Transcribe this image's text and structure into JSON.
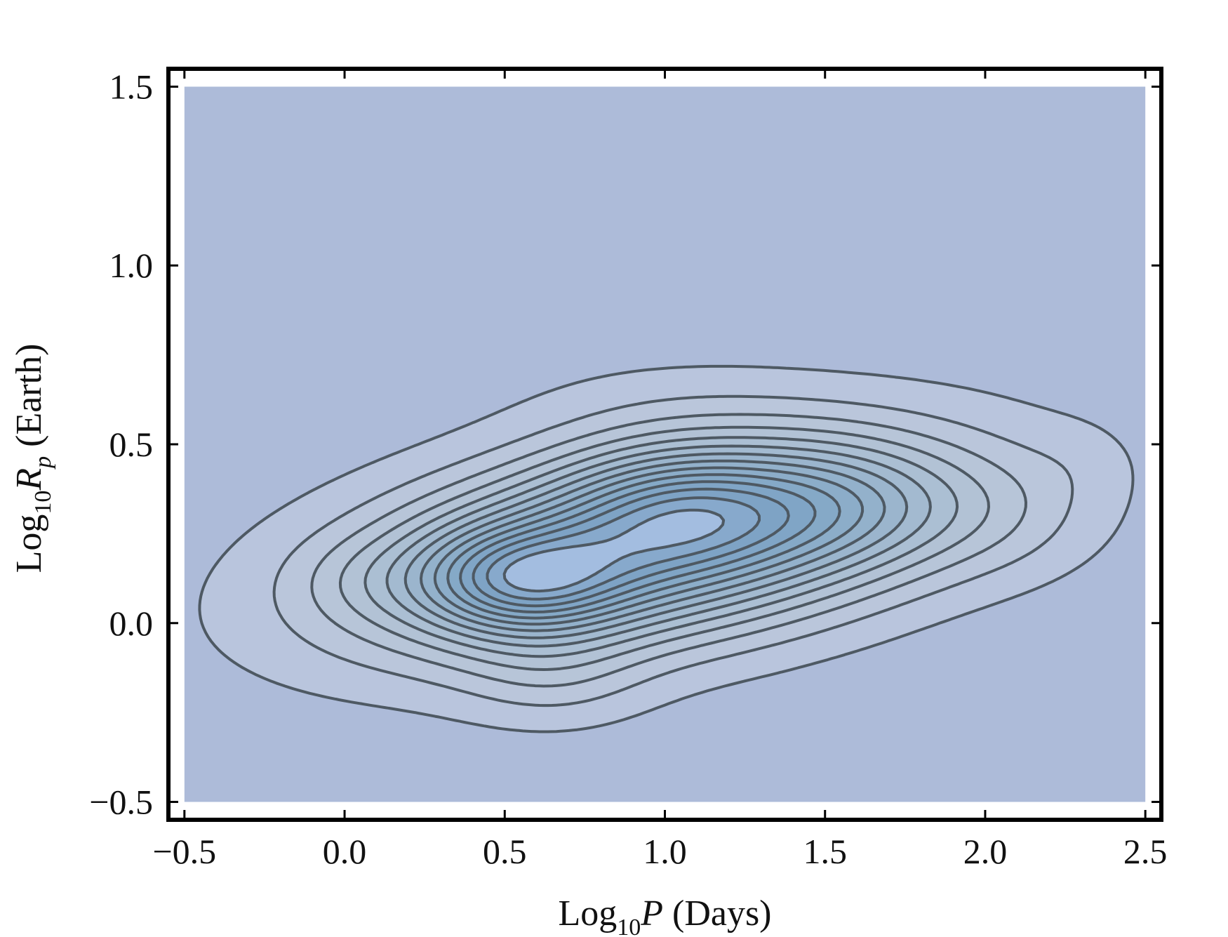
{
  "chart_data": {
    "type": "contour",
    "title": "",
    "xlabel": {
      "prefix": "Log",
      "subscript": "10",
      "variable": "P",
      "suffix": " (Days)"
    },
    "ylabel": {
      "prefix": "Log",
      "subscript": "10",
      "variable": "R",
      "var_subscript": "p",
      "suffix": " (Earth)"
    },
    "xlim": [
      -0.55,
      2.55
    ],
    "ylim": [
      -0.55,
      1.55
    ],
    "x_ticks": [
      -0.5,
      0.0,
      0.5,
      1.0,
      1.5,
      2.0,
      2.5
    ],
    "x_tick_labels": [
      "−0.5",
      "0.0",
      "0.5",
      "1.0",
      "1.5",
      "2.0",
      "2.5"
    ],
    "y_ticks": [
      -0.5,
      0.0,
      0.5,
      1.0,
      1.5
    ],
    "y_tick_labels": [
      "−0.5",
      "0.0",
      "0.5",
      "1.0",
      "1.5"
    ],
    "data_extent": {
      "x": [
        -0.5,
        2.5
      ],
      "y": [
        -0.5,
        1.5
      ]
    },
    "background_color": "#adbbd9",
    "frame_color": "#000000",
    "line_color": "#4e5963",
    "density_peak": {
      "x": 1.0,
      "y": 0.25
    },
    "density_model": {
      "center": [
        0.95,
        0.22
      ],
      "tilt_deg": 8,
      "sigma_major": 0.6,
      "sigma_minor": 0.18
    },
    "contour_levels": 14,
    "fill_colors": [
      "#b9c5dd",
      "#bac6db",
      "#b7c5d8",
      "#b2c2d5",
      "#abbfd3",
      "#a3bad0",
      "#9bb5cd",
      "#93b1cb",
      "#8cadc9",
      "#85a9c7",
      "#80a5c6",
      "#7ea3c5",
      "#87a9cc",
      "#a3bde0"
    ]
  }
}
